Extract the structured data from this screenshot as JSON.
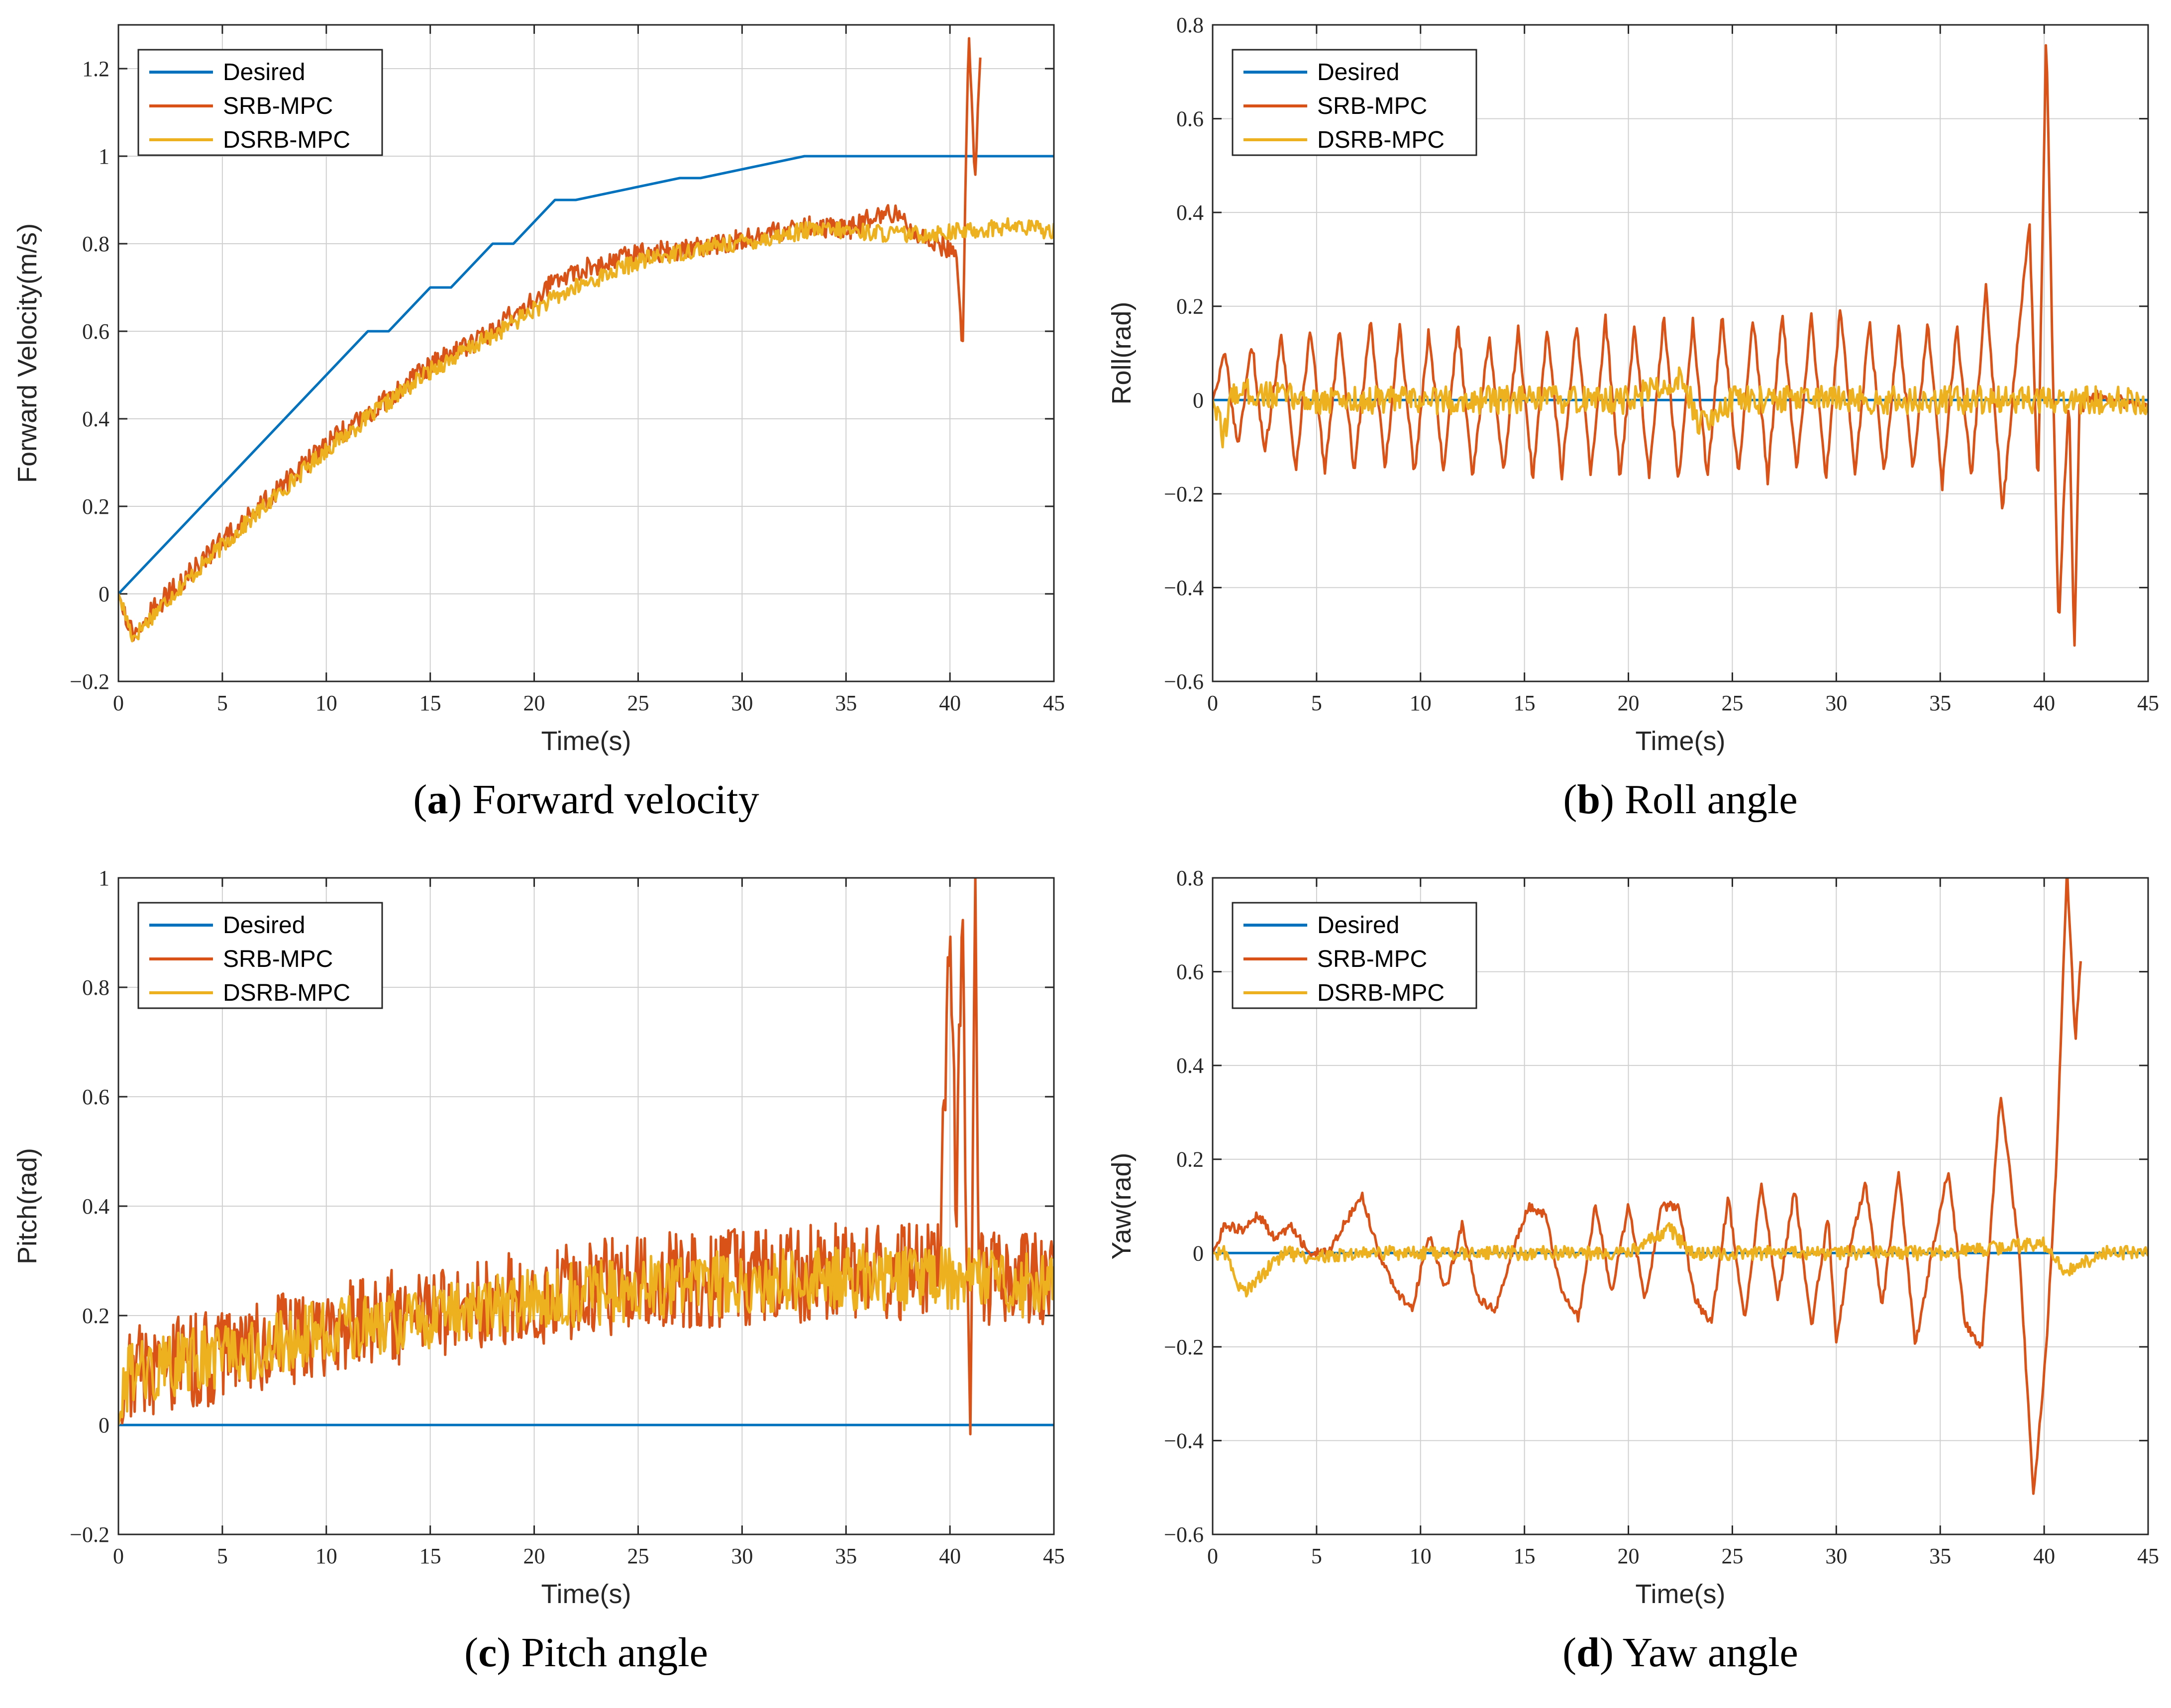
{
  "colors": {
    "desired": "#0072bd",
    "srb": "#d95319",
    "dsrb": "#edb120"
  },
  "legend": [
    "Desired",
    "SRB-MPC",
    "DSRB-MPC"
  ],
  "chart_data": [
    {
      "type": "line",
      "caption_letter": "a",
      "caption_text": " Forward velocity",
      "title": "",
      "xlabel": "Time(s)",
      "ylabel": "Forward Velocity(m/s)",
      "xlim": [
        0,
        45
      ],
      "ylim": [
        -0.2,
        1.3
      ],
      "xticks": [
        0,
        5,
        10,
        15,
        20,
        25,
        30,
        35,
        40,
        45
      ],
      "yticks": [
        -0.2,
        0,
        0.2,
        0.4,
        0.6,
        0.8,
        1,
        1.2
      ],
      "ytick_labels": [
        "−0.2",
        "0",
        "0.2",
        "0.4",
        "0.6",
        "0.8",
        "1",
        "1.2"
      ],
      "legend_position": "top-left",
      "series": [
        {
          "name": "Desired",
          "x": [
            0,
            12,
            13,
            15,
            16,
            18,
            19,
            21,
            22,
            27,
            28,
            33,
            45
          ],
          "y": [
            0,
            0.6,
            0.6,
            0.7,
            0.7,
            0.8,
            0.8,
            0.9,
            0.9,
            0.95,
            0.95,
            1.0,
            1.0
          ]
        },
        {
          "name": "SRB-MPC",
          "x": [
            0,
            0.7,
            2,
            5,
            10,
            15,
            18,
            20,
            22,
            25,
            28,
            31,
            33,
            35,
            37,
            38.5,
            39.5,
            40.3,
            40.6,
            40.9,
            41.2,
            41.5
          ],
          "y": [
            0,
            -0.09,
            -0.02,
            0.12,
            0.34,
            0.52,
            0.6,
            0.68,
            0.74,
            0.78,
            0.79,
            0.82,
            0.84,
            0.83,
            0.88,
            0.82,
            0.8,
            0.78,
            0.55,
            1.3,
            0.95,
            1.25
          ],
          "amp": 0.025
        },
        {
          "name": "DSRB-MPC",
          "x": [
            0,
            0.7,
            2,
            5,
            10,
            15,
            18,
            20,
            22,
            25,
            28,
            31,
            33,
            35,
            38,
            41,
            43,
            45
          ],
          "y": [
            0,
            -0.1,
            -0.03,
            0.11,
            0.33,
            0.51,
            0.59,
            0.65,
            0.7,
            0.76,
            0.79,
            0.81,
            0.83,
            0.83,
            0.82,
            0.83,
            0.84,
            0.83
          ],
          "amp": 0.02
        }
      ]
    },
    {
      "type": "line",
      "caption_letter": "b",
      "caption_text": " Roll angle",
      "title": "",
      "xlabel": "Time(s)",
      "ylabel": "Roll(rad)",
      "xlim": [
        0,
        45
      ],
      "ylim": [
        -0.6,
        0.8
      ],
      "xticks": [
        0,
        5,
        10,
        15,
        20,
        25,
        30,
        35,
        40,
        45
      ],
      "yticks": [
        -0.6,
        -0.4,
        -0.2,
        0,
        0.2,
        0.4,
        0.6,
        0.8
      ],
      "ytick_labels": [
        "−0.6",
        "−0.4",
        "−0.2",
        "0",
        "0.2",
        "0.4",
        "0.6",
        "0.8"
      ],
      "legend_position": "top-left",
      "series": [
        {
          "name": "Desired",
          "x": [
            0,
            45
          ],
          "y": [
            0,
            0
          ]
        },
        {
          "name": "SRB-MPC",
          "x": [
            0,
            0.6,
            1.2,
            1.9,
            2.5,
            3.3,
            4.0,
            4.7,
            5.4,
            6.1,
            6.8,
            7.6,
            8.3,
            9.0,
            9.7,
            10.4,
            11.1,
            11.8,
            12.5,
            13.3,
            14.0,
            14.7,
            15.4,
            16.1,
            16.8,
            17.5,
            18.2,
            18.9,
            19.6,
            20.3,
            21.0,
            21.7,
            22.4,
            23.1,
            23.8,
            24.5,
            25.3,
            26.0,
            26.7,
            27.4,
            28.1,
            28.8,
            29.5,
            30.2,
            30.9,
            31.6,
            32.3,
            33.0,
            33.7,
            34.4,
            35.1,
            35.8,
            36.5,
            37.2,
            38.0,
            38.7,
            39.3,
            39.7,
            40.1,
            40.4,
            40.7,
            40.95,
            41.2,
            41.45,
            41.7,
            42.5,
            43.5,
            45
          ],
          "y": [
            0,
            0.1,
            -0.1,
            0.12,
            -0.12,
            0.14,
            -0.15,
            0.16,
            -0.16,
            0.15,
            -0.15,
            0.17,
            -0.15,
            0.16,
            -0.16,
            0.15,
            -0.15,
            0.16,
            -0.16,
            0.14,
            -0.16,
            0.15,
            -0.17,
            0.16,
            -0.16,
            0.16,
            -0.16,
            0.17,
            -0.17,
            0.16,
            -0.17,
            0.18,
            -0.18,
            0.17,
            -0.17,
            0.18,
            -0.16,
            0.18,
            -0.17,
            0.19,
            -0.16,
            0.18,
            -0.17,
            0.2,
            -0.16,
            0.17,
            -0.16,
            0.16,
            -0.15,
            0.17,
            -0.18,
            0.16,
            -0.17,
            0.24,
            -0.24,
            0.12,
            0.37,
            -0.2,
            0.8,
            0.1,
            -0.5,
            -0.2,
            0.0,
            -0.55,
            -0.02,
            0.01,
            0.0,
            -0.02
          ],
          "amp": 0.012
        },
        {
          "name": "DSRB-MPC",
          "x": [
            0,
            0.5,
            1.0,
            5,
            10,
            15,
            20,
            22.7,
            23.3,
            25,
            30,
            35,
            40,
            45
          ],
          "y": [
            0,
            -0.08,
            0.02,
            0.0,
            0.0,
            0.0,
            0.0,
            0.05,
            -0.05,
            0.0,
            0.0,
            0.0,
            0.0,
            0.0
          ],
          "amp": 0.03
        }
      ]
    },
    {
      "type": "line",
      "caption_letter": "c",
      "caption_text": " Pitch angle",
      "title": "",
      "xlabel": "Time(s)",
      "ylabel": "Pitch(rad)",
      "xlim": [
        0,
        45
      ],
      "ylim": [
        -0.2,
        1
      ],
      "xticks": [
        0,
        5,
        10,
        15,
        20,
        25,
        30,
        35,
        40,
        45
      ],
      "yticks": [
        -0.2,
        0,
        0.2,
        0.4,
        0.6,
        0.8,
        1
      ],
      "ytick_labels": [
        "−0.2",
        "0",
        "0.2",
        "0.4",
        "0.6",
        "0.8",
        "1"
      ],
      "legend_position": "top-left",
      "series": [
        {
          "name": "Desired",
          "x": [
            0,
            45
          ],
          "y": [
            0,
            0
          ]
        },
        {
          "name": "SRB-MPC",
          "x": [
            0,
            0.5,
            1.5,
            5,
            10,
            15,
            20,
            25,
            30,
            35,
            38,
            39.5,
            40.0,
            40.3,
            40.6,
            40.8,
            41.0,
            41.2,
            41.4,
            41.7,
            42,
            45
          ],
          "y": [
            0,
            0.1,
            0.1,
            0.13,
            0.17,
            0.21,
            0.23,
            0.26,
            0.27,
            0.28,
            0.28,
            0.3,
            0.95,
            0.4,
            1.0,
            0.3,
            -0.08,
            1.0,
            0.28,
            0.27,
            0.27,
            0.27
          ],
          "amp": 0.09
        },
        {
          "name": "DSRB-MPC",
          "x": [
            0,
            0.5,
            1.5,
            5,
            10,
            15,
            20,
            25,
            30,
            35,
            40,
            45
          ],
          "y": [
            0,
            0.1,
            0.1,
            0.13,
            0.17,
            0.2,
            0.23,
            0.25,
            0.26,
            0.27,
            0.27,
            0.25
          ],
          "amp": 0.06
        }
      ]
    },
    {
      "type": "line",
      "caption_letter": "d",
      "caption_text": " Yaw angle",
      "title": "",
      "xlabel": "Time(s)",
      "ylabel": "Yaw(rad)",
      "xlim": [
        0,
        45
      ],
      "ylim": [
        -0.6,
        0.8
      ],
      "xticks": [
        0,
        5,
        10,
        15,
        20,
        25,
        30,
        35,
        40,
        45
      ],
      "yticks": [
        -0.6,
        -0.4,
        -0.2,
        0,
        0.2,
        0.4,
        0.6,
        0.8
      ],
      "ytick_labels": [
        "−0.6",
        "−0.4",
        "−0.2",
        "0",
        "0.2",
        "0.4",
        "0.6",
        "0.8"
      ],
      "legend_position": "top-left",
      "series": [
        {
          "name": "Desired",
          "x": [
            0,
            45
          ],
          "y": [
            0,
            0
          ]
        },
        {
          "name": "SRB-MPC",
          "x": [
            0,
            0.6,
            1.4,
            2.2,
            3.0,
            3.8,
            4.6,
            5.5,
            6.3,
            7.2,
            8.0,
            8.8,
            9.6,
            10.4,
            11.2,
            12.0,
            12.8,
            13.6,
            14.4,
            15.2,
            16.0,
            16.8,
            17.6,
            18.4,
            19.2,
            20.0,
            20.8,
            21.6,
            22.4,
            23.2,
            24.0,
            24.8,
            25.6,
            26.4,
            27.2,
            28.0,
            28.8,
            29.6,
            30.0,
            30.6,
            31.4,
            32.2,
            33.0,
            33.8,
            34.6,
            35.4,
            36.2,
            37.0,
            37.9,
            38.8,
            39.5,
            40.1,
            40.6,
            41.1,
            41.5,
            41.8
          ],
          "y": [
            0,
            0.06,
            0.05,
            0.08,
            0.03,
            0.06,
            0.0,
            0.0,
            0.06,
            0.12,
            0.0,
            -0.08,
            -0.12,
            0.04,
            -0.08,
            0.06,
            -0.1,
            -0.12,
            0.0,
            0.1,
            0.08,
            -0.08,
            -0.14,
            0.1,
            -0.08,
            0.1,
            -0.1,
            0.1,
            0.1,
            -0.1,
            -0.15,
            0.12,
            -0.15,
            0.15,
            -0.1,
            0.14,
            -0.16,
            0.08,
            -0.2,
            0.0,
            0.15,
            -0.12,
            0.17,
            -0.2,
            0.0,
            0.18,
            -0.15,
            -0.2,
            0.34,
            0.0,
            -0.52,
            -0.2,
            0.2,
            0.82,
            0.45,
            0.65
          ],
          "amp": 0.01
        },
        {
          "name": "DSRB-MPC",
          "x": [
            0,
            0.6,
            1.5,
            2.5,
            3.5,
            5,
            7,
            10,
            15,
            20,
            22,
            23,
            25,
            30,
            35,
            40,
            41,
            43,
            45
          ],
          "y": [
            0,
            0.0,
            -0.09,
            -0.04,
            0.0,
            -0.01,
            0.0,
            0.0,
            0.0,
            0.0,
            0.05,
            0.0,
            0.0,
            0.0,
            0.0,
            0.02,
            -0.04,
            0.0,
            0.0
          ],
          "amp": 0.015
        }
      ]
    }
  ]
}
